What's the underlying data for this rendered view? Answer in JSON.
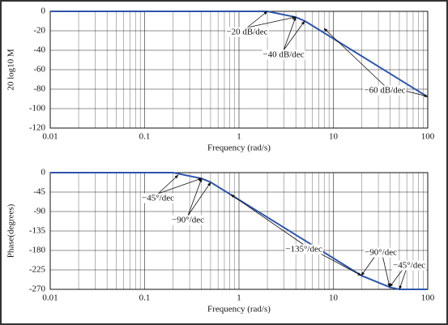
{
  "chart_data": [
    {
      "type": "line",
      "xlabel": "Frequency (rad/s)",
      "ylabel": "20 log10 M",
      "xscale": "log",
      "grid": true,
      "x": [
        0.01,
        2,
        4,
        5,
        100
      ],
      "series": [
        {
          "color": "#2e55a8",
          "values": [
            0,
            0,
            -6,
            -10,
            -88
          ]
        }
      ],
      "xlim": [
        0.01,
        100
      ],
      "ylim": [
        -120,
        0
      ],
      "xticks": [
        0.01,
        0.1,
        1,
        10,
        100
      ],
      "yticks": [
        0,
        -20,
        -40,
        -60,
        -80,
        -100,
        -120
      ],
      "annotations": [
        "−20 dB/dec",
        "−40 dB/dec",
        "−60 dB/dec"
      ]
    },
    {
      "type": "line",
      "xlabel": "Frequency (rad/s)",
      "ylabel": "Phase(degrees)",
      "xscale": "log",
      "grid": true,
      "x": [
        0.01,
        0.2,
        0.4,
        0.5,
        20,
        40,
        50,
        100
      ],
      "series": [
        {
          "color": "#2e55a8",
          "values": [
            0,
            0,
            -13.5,
            -22,
            -238.5,
            -265.5,
            -270,
            -270
          ]
        }
      ],
      "xlim": [
        0.01,
        100
      ],
      "ylim": [
        -270,
        0
      ],
      "xticks": [
        0.01,
        0.1,
        1,
        10,
        100
      ],
      "yticks": [
        0,
        -45,
        -90,
        -135,
        -180,
        -225,
        -270
      ],
      "annotations": [
        "−45°/dec",
        "−90°/dec",
        "−135°/dec",
        "−90°/dec",
        "−45°/dec"
      ]
    }
  ]
}
